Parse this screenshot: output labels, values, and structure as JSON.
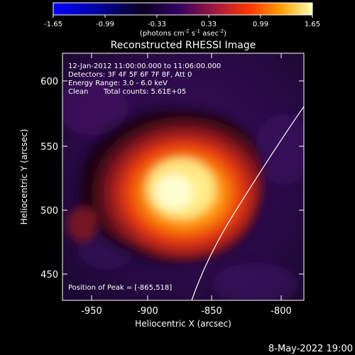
{
  "colorbar": {
    "ticks": [
      "-1.65",
      "-0.99",
      "-0.33",
      "0.33",
      "0.99",
      "1.65"
    ],
    "unit_main": "(photons cm",
    "unit_sup1": "-2",
    "unit_mid1": " s",
    "unit_sup2": "-1",
    "unit_mid2": " asec",
    "unit_sup3": "-2",
    "unit_end": ")"
  },
  "title": "Reconstructed RHESSI Image",
  "info": {
    "time_range": "12-Jan-2012 11:00:00.000 to 11:06:00.000",
    "detectors": "Detectors: 3F 4F 5F 6F 7F 8F, Att 0",
    "energy_range": "Energy Range: 3.0 - 6.0 keV",
    "clean_label": "Clean",
    "total_counts": "Total counts: 5.61E+05",
    "peak_position": "Position of Peak = [-865,518]"
  },
  "axes": {
    "xlabel": "Heliocentric X (arcsec)",
    "ylabel": "Heliocentric Y (arcsec)",
    "xticks": [
      "-950",
      "-900",
      "-850",
      "-800"
    ],
    "yticks": [
      "600",
      "550",
      "500",
      "450"
    ],
    "xrange": [
      -975,
      -785
    ],
    "yrange": [
      427,
      625
    ]
  },
  "source": {
    "peak_x": -865,
    "peak_y": 518
  },
  "colors": {
    "background": "#000000",
    "text": "#ffffff",
    "limb": "#ffffff"
  },
  "timestamp": "8-May-2022 19:00"
}
